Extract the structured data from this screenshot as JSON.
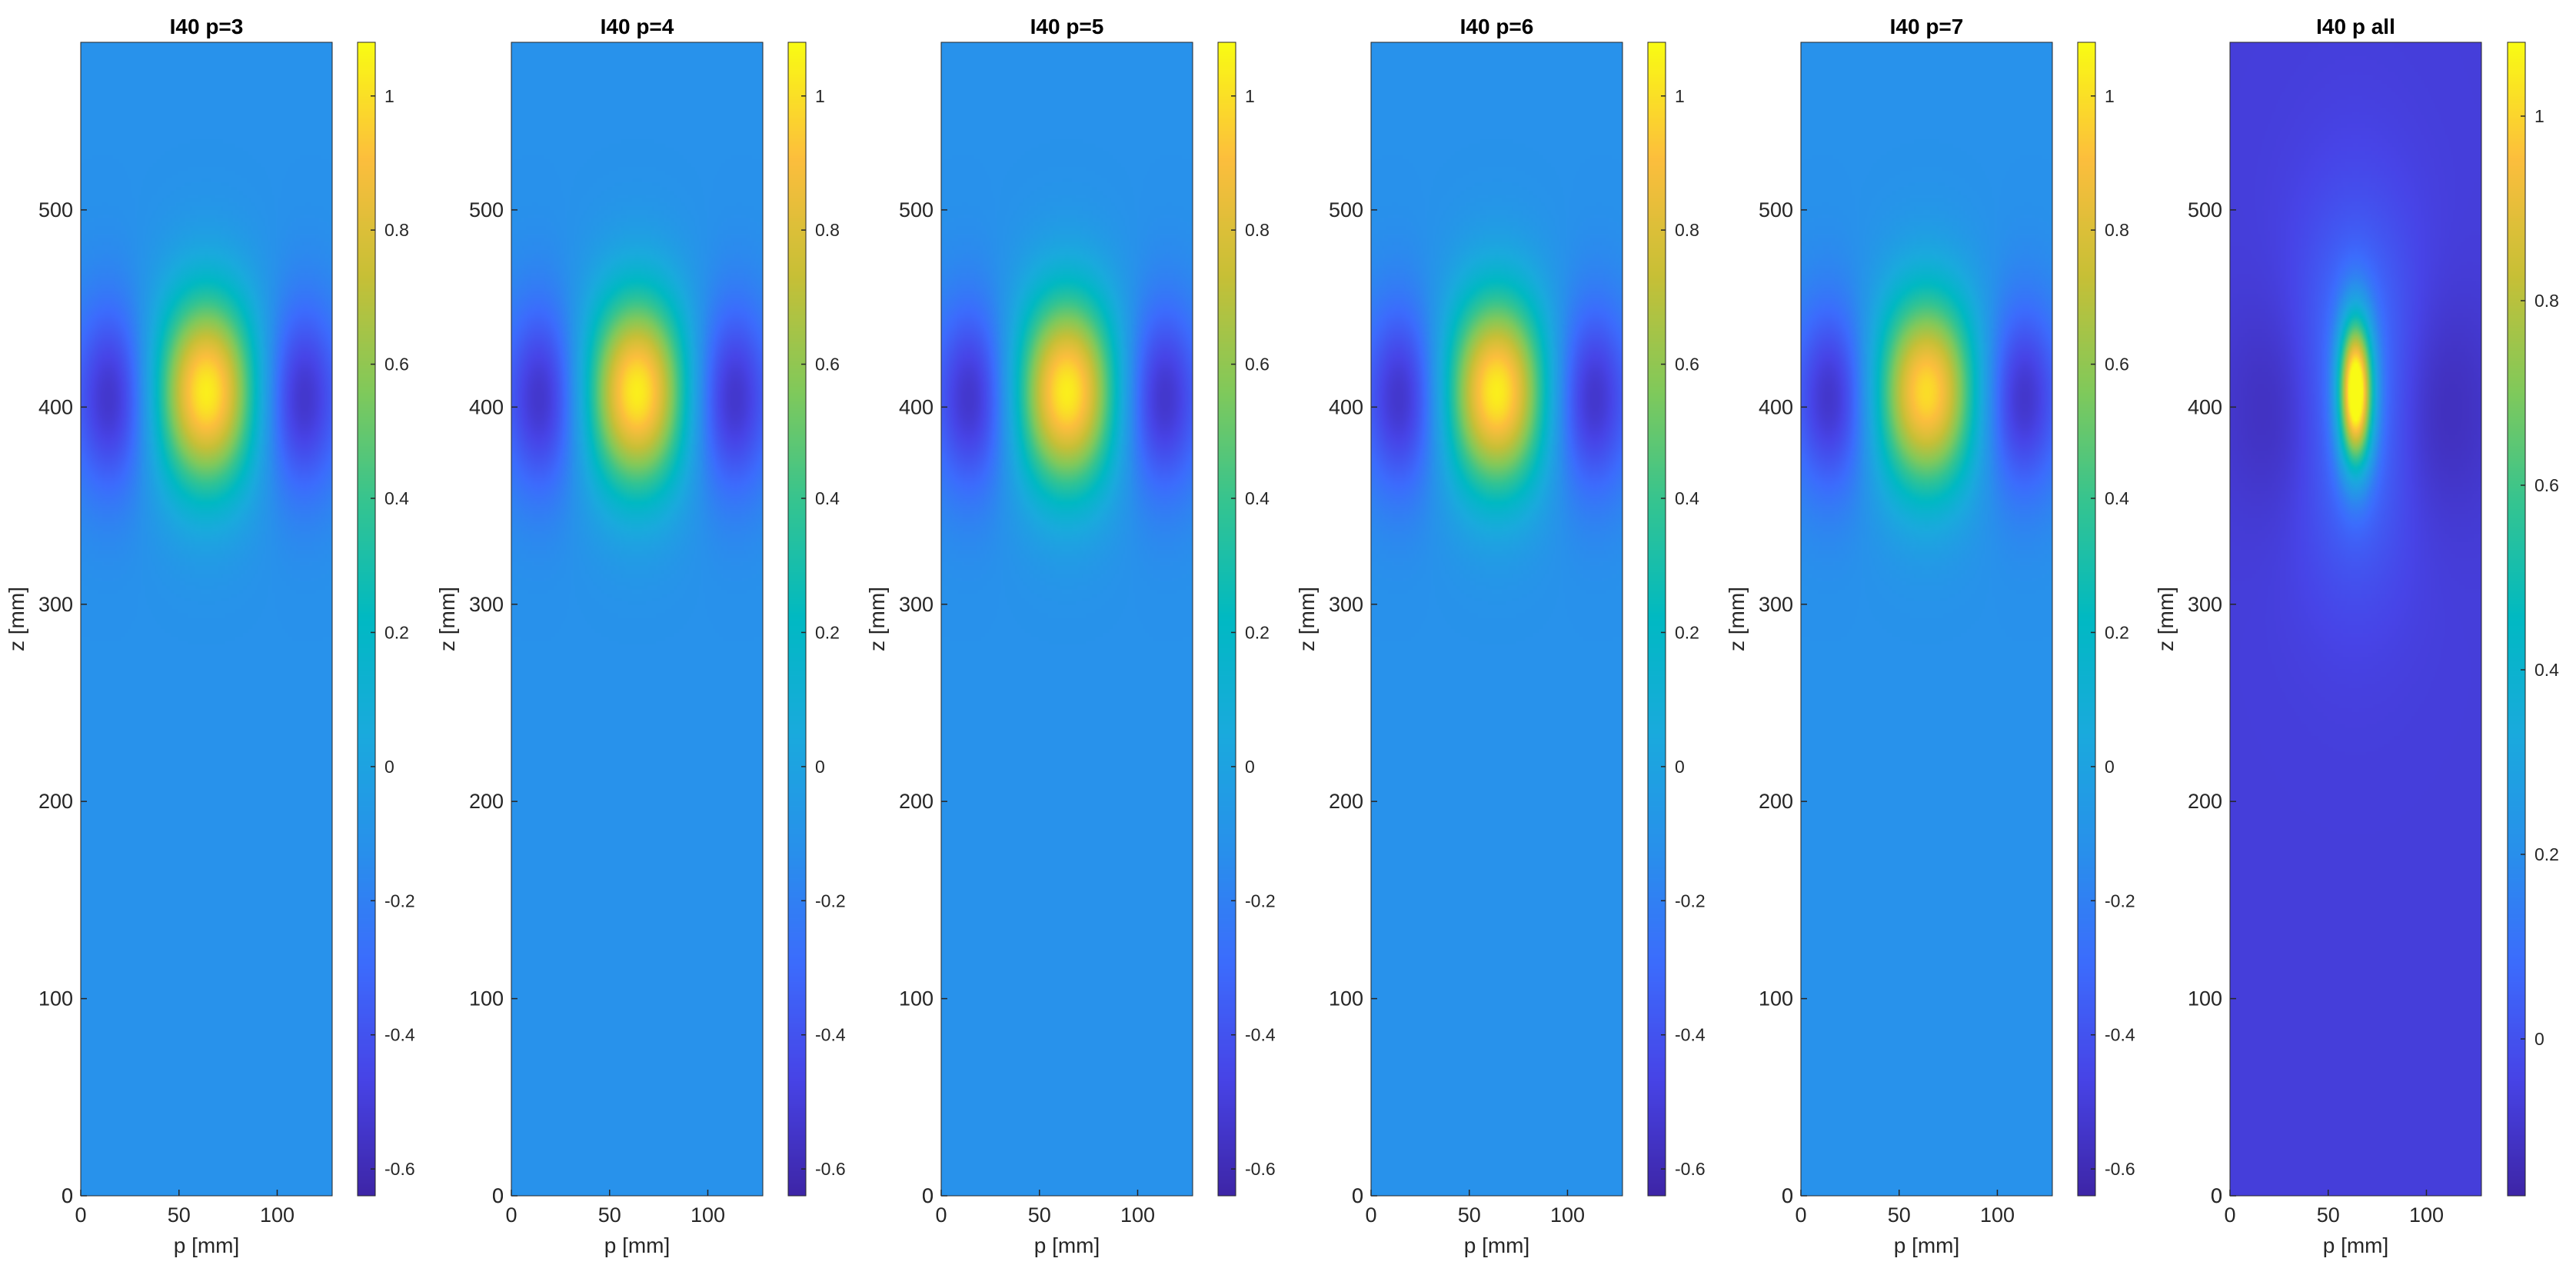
{
  "chart_data": [
    {
      "type": "heatmap",
      "title": "I40 p=3",
      "xlabel": "p [mm]",
      "ylabel": "z [mm]",
      "xlim": [
        0,
        128
      ],
      "ylim": [
        0,
        585
      ],
      "xticks": [
        0,
        50,
        100
      ],
      "yticks": [
        0,
        100,
        200,
        300,
        400,
        500
      ],
      "colorbar": {
        "colormap": "parula",
        "clim": [
          -0.64,
          1.08
        ],
        "ticks": [
          -0.6,
          -0.4,
          -0.2,
          0,
          0.2,
          0.4,
          0.6,
          0.8,
          1
        ]
      },
      "field": {
        "background": -0.12,
        "peak": {
          "p": 64,
          "z": 408,
          "value": 1.05
        },
        "troughs": [
          {
            "p": 16,
            "z": 405,
            "value": -0.58
          },
          {
            "p": 112,
            "z": 405,
            "value": -0.58
          }
        ]
      }
    },
    {
      "type": "heatmap",
      "title": "I40 p=4",
      "xlabel": "p [mm]",
      "ylabel": "z [mm]",
      "xlim": [
        0,
        128
      ],
      "ylim": [
        0,
        585
      ],
      "xticks": [
        0,
        50,
        100
      ],
      "yticks": [
        0,
        100,
        200,
        300,
        400,
        500
      ],
      "colorbar": {
        "colormap": "parula",
        "clim": [
          -0.64,
          1.08
        ],
        "ticks": [
          -0.6,
          -0.4,
          -0.2,
          0,
          0.2,
          0.4,
          0.6,
          0.8,
          1
        ]
      },
      "field": {
        "background": -0.12,
        "peak": {
          "p": 64,
          "z": 408,
          "value": 1.05
        },
        "troughs": [
          {
            "p": 16,
            "z": 405,
            "value": -0.58
          },
          {
            "p": 112,
            "z": 405,
            "value": -0.58
          }
        ]
      }
    },
    {
      "type": "heatmap",
      "title": "I40 p=5",
      "xlabel": "p [mm]",
      "ylabel": "z [mm]",
      "xlim": [
        0,
        128
      ],
      "ylim": [
        0,
        585
      ],
      "xticks": [
        0,
        50,
        100
      ],
      "yticks": [
        0,
        100,
        200,
        300,
        400,
        500
      ],
      "colorbar": {
        "colormap": "parula",
        "clim": [
          -0.64,
          1.08
        ],
        "ticks": [
          -0.6,
          -0.4,
          -0.2,
          0,
          0.2,
          0.4,
          0.6,
          0.8,
          1
        ]
      },
      "field": {
        "background": -0.12,
        "peak": {
          "p": 64,
          "z": 408,
          "value": 1.05
        },
        "troughs": [
          {
            "p": 16,
            "z": 405,
            "value": -0.58
          },
          {
            "p": 112,
            "z": 405,
            "value": -0.58
          }
        ]
      }
    },
    {
      "type": "heatmap",
      "title": "I40 p=6",
      "xlabel": "p [mm]",
      "ylabel": "z [mm]",
      "xlim": [
        0,
        128
      ],
      "ylim": [
        0,
        585
      ],
      "xticks": [
        0,
        50,
        100
      ],
      "yticks": [
        0,
        100,
        200,
        300,
        400,
        500
      ],
      "colorbar": {
        "colormap": "parula",
        "clim": [
          -0.64,
          1.08
        ],
        "ticks": [
          -0.6,
          -0.4,
          -0.2,
          0,
          0.2,
          0.4,
          0.6,
          0.8,
          1
        ]
      },
      "field": {
        "background": -0.12,
        "peak": {
          "p": 64,
          "z": 408,
          "value": 1.05
        },
        "troughs": [
          {
            "p": 16,
            "z": 405,
            "value": -0.58
          },
          {
            "p": 112,
            "z": 405,
            "value": -0.58
          }
        ]
      }
    },
    {
      "type": "heatmap",
      "title": "I40 p=7",
      "xlabel": "p [mm]",
      "ylabel": "z [mm]",
      "xlim": [
        0,
        128
      ],
      "ylim": [
        0,
        585
      ],
      "xticks": [
        0,
        50,
        100
      ],
      "yticks": [
        0,
        100,
        200,
        300,
        400,
        500
      ],
      "colorbar": {
        "colormap": "parula",
        "clim": [
          -0.64,
          1.08
        ],
        "ticks": [
          -0.6,
          -0.4,
          -0.2,
          0,
          0.2,
          0.4,
          0.6,
          0.8,
          1
        ]
      },
      "field": {
        "background": -0.12,
        "peak": {
          "p": 64,
          "z": 408,
          "value": 1.0
        },
        "troughs": [
          {
            "p": 16,
            "z": 405,
            "value": -0.58
          },
          {
            "p": 112,
            "z": 405,
            "value": -0.58
          }
        ]
      }
    },
    {
      "type": "heatmap",
      "title": "I40 p all",
      "xlabel": "p [mm]",
      "ylabel": "z [mm]",
      "xlim": [
        0,
        128
      ],
      "ylim": [
        0,
        585
      ],
      "xticks": [
        0,
        50,
        100
      ],
      "yticks": [
        0,
        100,
        200,
        300,
        400,
        500
      ],
      "colorbar": {
        "colormap": "parula",
        "clim": [
          -0.17,
          1.08
        ],
        "ticks": [
          0,
          0.2,
          0.4,
          0.6,
          0.8,
          1
        ]
      },
      "field": {
        "background": -0.07,
        "peak": {
          "p": 64,
          "z": 408,
          "value": 1.05
        },
        "troughs": [
          {
            "p": 32,
            "z": 400,
            "value": -0.16
          },
          {
            "p": 100,
            "z": 400,
            "value": -0.16
          }
        ]
      }
    }
  ]
}
